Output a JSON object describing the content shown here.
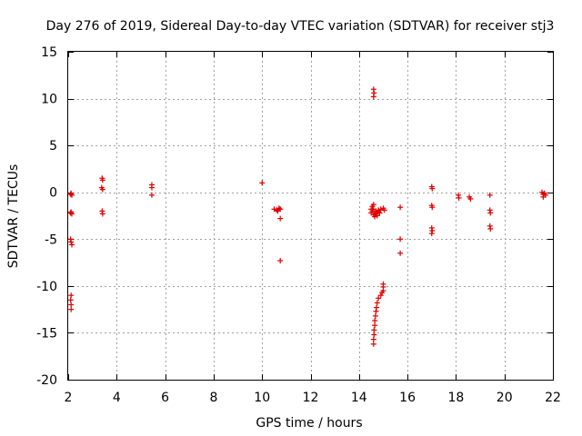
{
  "chart_data": {
    "type": "scatter",
    "title": "Day 276 of 2019, Sidereal Day-to-day VTEC variation (SDTVAR) for receiver stj3",
    "xlabel": "GPS time / hours",
    "ylabel": "SDTVAR / TECUs",
    "xlim": [
      2,
      22
    ],
    "ylim": [
      -20,
      15
    ],
    "xticks": [
      2,
      4,
      6,
      8,
      10,
      12,
      14,
      16,
      18,
      20,
      22
    ],
    "yticks": [
      15,
      10,
      5,
      0,
      -5,
      -10,
      -15,
      -20
    ],
    "grid": true,
    "marker": "+",
    "color": "#e00000",
    "series": [
      {
        "name": "stj3",
        "points": [
          [
            2.1,
            -0.2
          ],
          [
            2.15,
            -0.3
          ],
          [
            2.12,
            -0.1
          ],
          [
            2.1,
            -2.2
          ],
          [
            2.15,
            -2.3
          ],
          [
            2.12,
            -2.1
          ],
          [
            2.1,
            -5.0
          ],
          [
            2.12,
            -5.3
          ],
          [
            2.15,
            -5.6
          ],
          [
            2.12,
            -11.0
          ],
          [
            2.1,
            -11.5
          ],
          [
            2.12,
            -12.0
          ],
          [
            2.12,
            -12.5
          ],
          [
            3.4,
            1.5
          ],
          [
            3.42,
            1.3
          ],
          [
            3.38,
            0.5
          ],
          [
            3.42,
            0.3
          ],
          [
            3.4,
            -2.0
          ],
          [
            3.42,
            -2.3
          ],
          [
            5.45,
            0.8
          ],
          [
            5.45,
            0.5
          ],
          [
            5.45,
            -0.3
          ],
          [
            10.0,
            1.0
          ],
          [
            10.5,
            -1.8
          ],
          [
            10.6,
            -1.9
          ],
          [
            10.65,
            -2.0
          ],
          [
            10.7,
            -1.7
          ],
          [
            10.75,
            -1.8
          ],
          [
            10.75,
            -2.8
          ],
          [
            10.75,
            -7.3
          ],
          [
            14.5,
            -1.8
          ],
          [
            14.5,
            -2.2
          ],
          [
            14.55,
            -1.5
          ],
          [
            14.55,
            -2.0
          ],
          [
            14.6,
            -2.4
          ],
          [
            14.6,
            -1.3
          ],
          [
            14.6,
            -1.8
          ],
          [
            14.65,
            -2.2
          ],
          [
            14.65,
            -2.6
          ],
          [
            14.7,
            -2.0
          ],
          [
            14.7,
            -2.3
          ],
          [
            14.75,
            -2.5
          ],
          [
            14.8,
            -2.1
          ],
          [
            14.8,
            -1.9
          ],
          [
            14.85,
            -2.2
          ],
          [
            14.9,
            -1.8
          ],
          [
            15.0,
            -1.7
          ],
          [
            15.05,
            -1.9
          ],
          [
            14.6,
            11.0
          ],
          [
            14.62,
            10.6
          ],
          [
            14.6,
            10.2
          ],
          [
            14.6,
            -16.2
          ],
          [
            14.6,
            -15.7
          ],
          [
            14.62,
            -15.2
          ],
          [
            14.62,
            -14.7
          ],
          [
            14.65,
            -14.2
          ],
          [
            14.65,
            -13.7
          ],
          [
            14.68,
            -13.2
          ],
          [
            14.7,
            -12.7
          ],
          [
            14.72,
            -12.3
          ],
          [
            14.75,
            -11.8
          ],
          [
            14.8,
            -11.3
          ],
          [
            14.9,
            -11.0
          ],
          [
            14.95,
            -10.7
          ],
          [
            15.0,
            -10.5
          ],
          [
            15.0,
            -10.1
          ],
          [
            15.0,
            -9.8
          ],
          [
            15.7,
            -1.6
          ],
          [
            15.7,
            -5.0
          ],
          [
            15.7,
            -6.5
          ],
          [
            17.0,
            0.6
          ],
          [
            17.02,
            0.4
          ],
          [
            17.0,
            -1.4
          ],
          [
            17.02,
            -1.6
          ],
          [
            17.0,
            -3.8
          ],
          [
            17.02,
            -4.1
          ],
          [
            17.0,
            -4.4
          ],
          [
            18.1,
            -0.3
          ],
          [
            18.12,
            -0.6
          ],
          [
            18.55,
            -0.5
          ],
          [
            18.6,
            -0.7
          ],
          [
            19.4,
            -0.3
          ],
          [
            19.4,
            -1.9
          ],
          [
            19.42,
            -2.2
          ],
          [
            19.4,
            -3.6
          ],
          [
            19.42,
            -3.9
          ],
          [
            21.55,
            0.0
          ],
          [
            21.6,
            -0.2
          ],
          [
            21.6,
            -0.5
          ],
          [
            21.65,
            -0.1
          ],
          [
            21.7,
            -0.3
          ]
        ]
      }
    ]
  }
}
